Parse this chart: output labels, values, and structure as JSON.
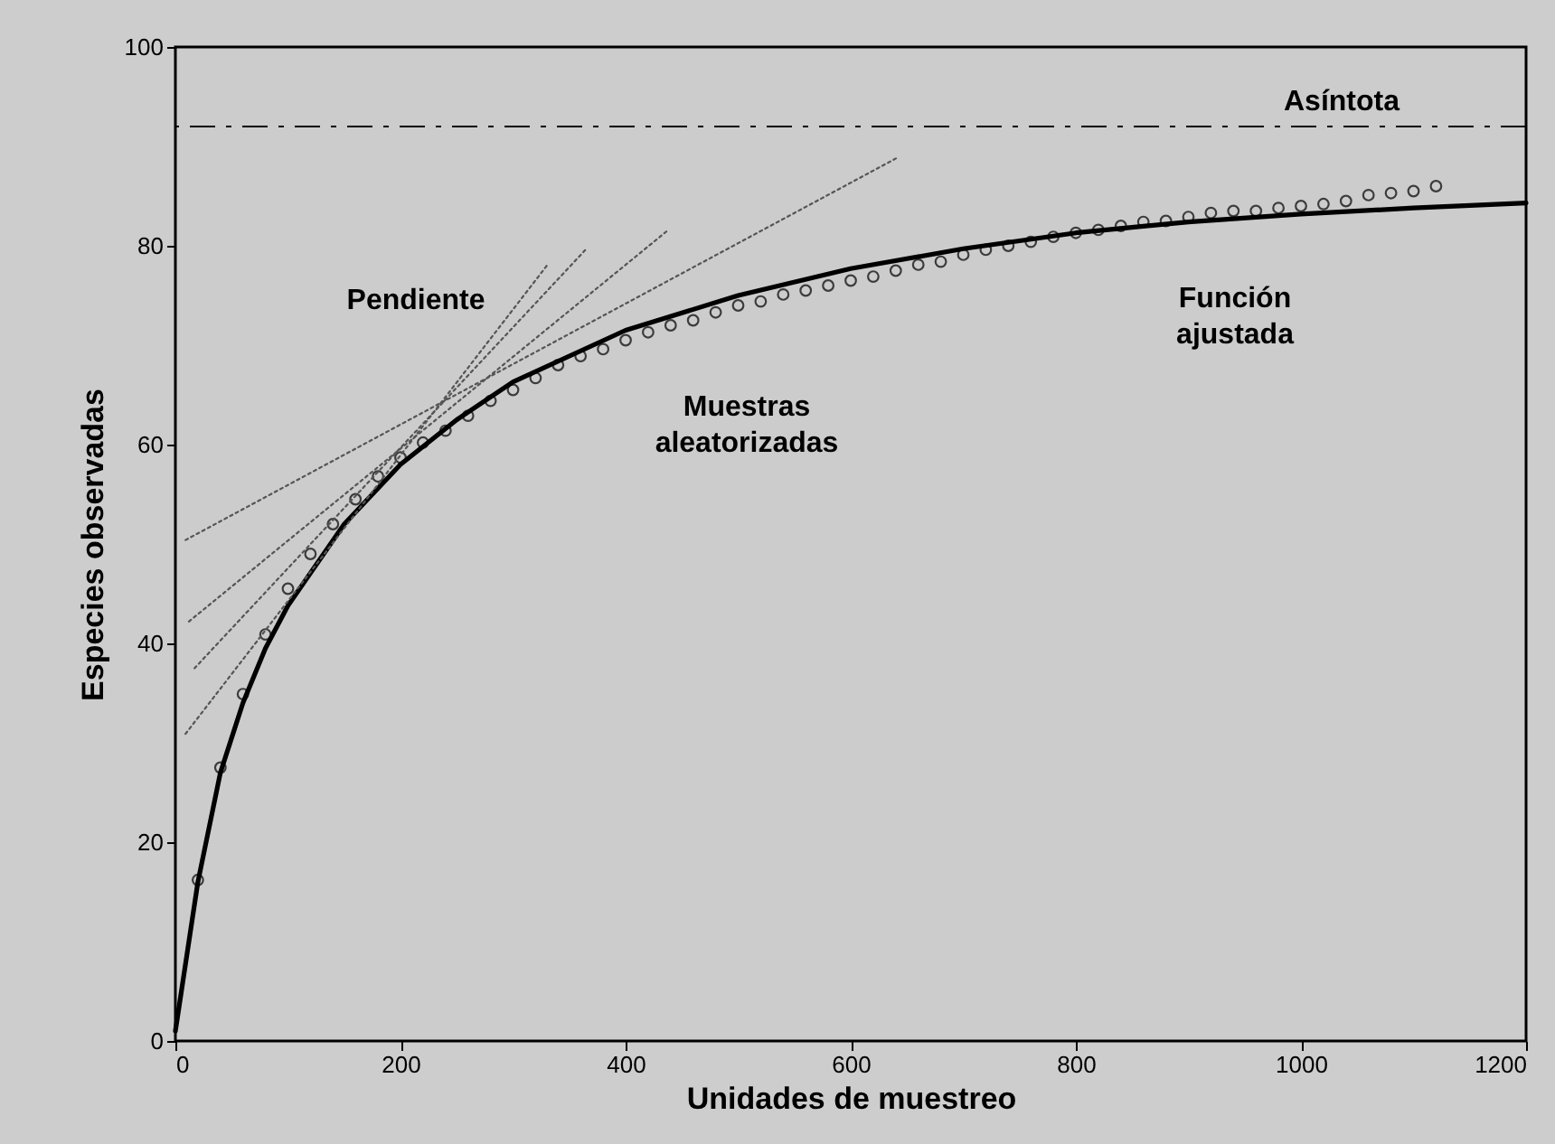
{
  "chart_data": {
    "type": "line",
    "xlabel": "Unidades de muestreo",
    "ylabel": "Especies observadas",
    "xlim": [
      0,
      1200
    ],
    "ylim": [
      0,
      100
    ],
    "xticks": [
      0,
      200,
      400,
      600,
      800,
      1000,
      1200
    ],
    "yticks": [
      0,
      20,
      40,
      60,
      80,
      100
    ],
    "grid": false,
    "legend": false,
    "series": [
      {
        "color": "#000000",
        "line_style": "solid",
        "marker": "none",
        "x": [
          0,
          20,
          40,
          60,
          80,
          100,
          150,
          200,
          250,
          300,
          400,
          500,
          600,
          700,
          800,
          900,
          1000,
          1100,
          1200
        ],
        "values": [
          1,
          16,
          27,
          34,
          39.5,
          43.8,
          52,
          58,
          62.5,
          66.3,
          71.5,
          75,
          77.7,
          79.7,
          81.3,
          82.4,
          83.2,
          83.8,
          84.3
        ]
      },
      {
        "type": "scatter",
        "color": "#000000",
        "marker": "circle",
        "x": [
          20,
          40,
          60,
          80,
          100,
          120,
          140,
          160,
          180,
          200,
          220,
          240,
          260,
          280,
          300,
          320,
          340,
          360,
          380,
          400,
          420,
          440,
          460,
          480,
          500,
          520,
          540,
          560,
          580,
          600,
          620,
          640,
          660,
          680,
          700,
          720,
          740,
          760,
          780,
          800,
          820,
          840,
          860,
          880,
          900,
          920,
          940,
          960,
          980,
          1000,
          1020,
          1040,
          1060,
          1080,
          1100,
          1120
        ],
        "values": [
          16.2,
          27.5,
          34.9,
          40.9,
          45.5,
          49,
          52,
          54.5,
          56.8,
          58.7,
          60.2,
          61.4,
          62.9,
          64.4,
          65.5,
          66.7,
          68,
          68.9,
          69.6,
          70.5,
          71.3,
          72,
          72.5,
          73.3,
          74,
          74.4,
          75.1,
          75.5,
          76,
          76.5,
          76.9,
          77.5,
          78.1,
          78.4,
          79.1,
          79.6,
          80,
          80.4,
          80.9,
          81.3,
          81.6,
          82,
          82.4,
          82.5,
          82.9,
          83.3,
          83.5,
          83.5,
          83.8,
          84,
          84.2,
          84.5,
          85.1,
          85.3,
          85.5,
          86
        ]
      },
      {
        "type": "line",
        "color": "#555555",
        "line_style": "dotted",
        "marker": "none",
        "x": [
          9,
          330
        ],
        "values": [
          30.9,
          78
        ]
      },
      {
        "type": "line",
        "color": "#555555",
        "line_style": "dotted",
        "marker": "none",
        "x": [
          17,
          366
        ],
        "values": [
          37.5,
          79.8
        ]
      },
      {
        "type": "line",
        "color": "#555555",
        "line_style": "dotted",
        "marker": "none",
        "x": [
          12,
          438
        ],
        "values": [
          42.2,
          81.6
        ]
      },
      {
        "type": "line",
        "color": "#555555",
        "line_style": "dotted",
        "marker": "none",
        "x": [
          9,
          642
        ],
        "values": [
          50.4,
          88.9
        ]
      }
    ],
    "ref_lines": [
      {
        "axis": "y",
        "value": 92,
        "label": "Asíntota",
        "color": "#000000",
        "line_style": "dashdot"
      }
    ],
    "annotations": [
      "Pendiente",
      "Muestras\naleatorizadas",
      "Función\najustada"
    ]
  }
}
